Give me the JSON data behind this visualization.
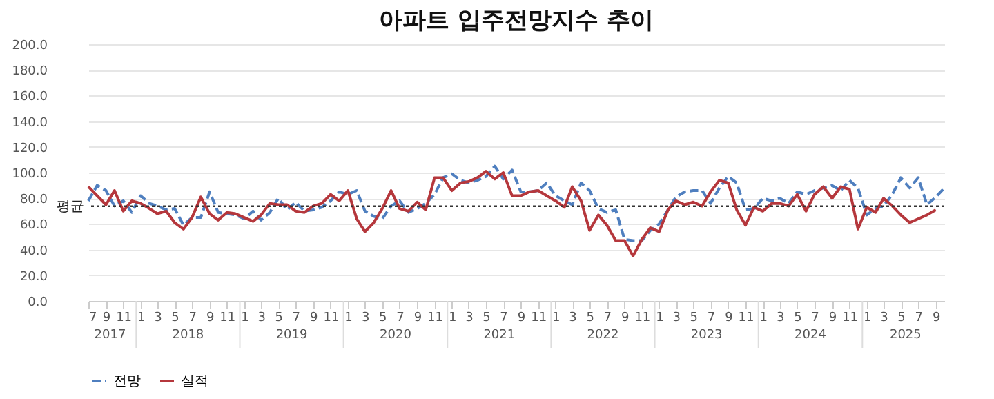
{
  "chart_data": {
    "type": "line",
    "title": "아파트 입주전망지수 추이",
    "x": [
      "2017-07",
      "2017-08",
      "2017-09",
      "2017-10",
      "2017-11",
      "2017-12",
      "2018-01",
      "2018-02",
      "2018-03",
      "2018-04",
      "2018-05",
      "2018-06",
      "2018-07",
      "2018-08",
      "2018-09",
      "2018-10",
      "2018-11",
      "2018-12",
      "2019-01",
      "2019-02",
      "2019-03",
      "2019-04",
      "2019-05",
      "2019-06",
      "2019-07",
      "2019-08",
      "2019-09",
      "2019-10",
      "2019-11",
      "2019-12",
      "2020-01",
      "2020-02",
      "2020-03",
      "2020-04",
      "2020-05",
      "2020-06",
      "2020-07",
      "2020-08",
      "2020-09",
      "2020-10",
      "2020-11",
      "2020-12",
      "2021-01",
      "2021-02",
      "2021-03",
      "2021-04",
      "2021-05",
      "2021-06",
      "2021-07",
      "2021-08",
      "2021-09",
      "2021-10",
      "2021-11",
      "2021-12",
      "2022-01",
      "2022-02",
      "2022-03",
      "2022-04",
      "2022-05",
      "2022-06",
      "2022-07",
      "2022-08",
      "2022-09",
      "2022-10",
      "2022-11",
      "2022-12",
      "2023-01",
      "2023-02",
      "2023-03",
      "2023-04",
      "2023-05",
      "2023-06",
      "2023-07",
      "2023-08",
      "2023-09",
      "2023-10",
      "2023-11",
      "2023-12",
      "2024-01",
      "2024-02",
      "2024-03",
      "2024-04",
      "2024-05",
      "2024-06",
      "2024-07",
      "2024-08",
      "2024-09",
      "2024-10",
      "2024-11",
      "2024-12",
      "2025-01",
      "2025-02",
      "2025-03",
      "2025-04",
      "2025-05",
      "2025-06",
      "2025-07",
      "2025-08",
      "2025-09",
      "2025-10"
    ],
    "xlim": [
      "2017-07",
      "2025-10"
    ],
    "xticks": [
      {
        "value": "2017-07",
        "label": "7"
      },
      {
        "value": "2017-09",
        "label": "9"
      },
      {
        "value": "2017-11",
        "label": "11"
      },
      {
        "value": "2018-01",
        "label": "1"
      },
      {
        "value": "2018-03",
        "label": "3"
      },
      {
        "value": "2018-05",
        "label": "5"
      },
      {
        "value": "2018-07",
        "label": "7"
      },
      {
        "value": "2018-09",
        "label": "9"
      },
      {
        "value": "2018-11",
        "label": "11"
      },
      {
        "value": "2019-01",
        "label": "1"
      },
      {
        "value": "2019-03",
        "label": "3"
      },
      {
        "value": "2019-05",
        "label": "5"
      },
      {
        "value": "2019-07",
        "label": "7"
      },
      {
        "value": "2019-09",
        "label": "9"
      },
      {
        "value": "2019-11",
        "label": "11"
      },
      {
        "value": "2020-01",
        "label": "1"
      },
      {
        "value": "2020-03",
        "label": "3"
      },
      {
        "value": "2020-05",
        "label": "5"
      },
      {
        "value": "2020-07",
        "label": "7"
      },
      {
        "value": "2020-09",
        "label": "9"
      },
      {
        "value": "2020-11",
        "label": "11"
      },
      {
        "value": "2021-01",
        "label": "1"
      },
      {
        "value": "2021-03",
        "label": "3"
      },
      {
        "value": "2021-05",
        "label": "5"
      },
      {
        "value": "2021-07",
        "label": "7"
      },
      {
        "value": "2021-09",
        "label": "9"
      },
      {
        "value": "2021-11",
        "label": "11"
      },
      {
        "value": "2022-01",
        "label": "1"
      },
      {
        "value": "2022-03",
        "label": "3"
      },
      {
        "value": "2022-05",
        "label": "5"
      },
      {
        "value": "2022-07",
        "label": "7"
      },
      {
        "value": "2022-09",
        "label": "9"
      },
      {
        "value": "2022-11",
        "label": "11"
      },
      {
        "value": "2023-01",
        "label": "1"
      },
      {
        "value": "2023-03",
        "label": "3"
      },
      {
        "value": "2023-05",
        "label": "5"
      },
      {
        "value": "2023-07",
        "label": "7"
      },
      {
        "value": "2023-09",
        "label": "9"
      },
      {
        "value": "2023-11",
        "label": "11"
      },
      {
        "value": "2024-01",
        "label": "1"
      },
      {
        "value": "2024-03",
        "label": "3"
      },
      {
        "value": "2024-05",
        "label": "5"
      },
      {
        "value": "2024-07",
        "label": "7"
      },
      {
        "value": "2024-09",
        "label": "9"
      },
      {
        "value": "2024-11",
        "label": "11"
      },
      {
        "value": "2025-01",
        "label": "1"
      },
      {
        "value": "2025-03",
        "label": "3"
      },
      {
        "value": "2025-05",
        "label": "5"
      },
      {
        "value": "2025-07",
        "label": "7"
      },
      {
        "value": "2025-09",
        "label": "9"
      }
    ],
    "ylim": [
      0,
      200
    ],
    "yticks": [
      {
        "value": 0,
        "label": "0.0"
      },
      {
        "value": 20,
        "label": "20.0"
      },
      {
        "value": 40,
        "label": "40.0"
      },
      {
        "value": 60,
        "label": "60.0"
      },
      {
        "value": 80,
        "label": "80.0"
      },
      {
        "value": 100,
        "label": "100.0"
      },
      {
        "value": 120,
        "label": "120.0"
      },
      {
        "value": 140,
        "label": "140.0"
      },
      {
        "value": 160,
        "label": "160.0"
      },
      {
        "value": 180,
        "label": "180.0"
      },
      {
        "value": 200,
        "label": "200.0"
      }
    ],
    "grid": "y",
    "legend": "bottom",
    "series": [
      {
        "name": "전망",
        "color": "#4f7fbf",
        "line_style": "dashed",
        "values": [
          78,
          90,
          86,
          74,
          78,
          69,
          82,
          76,
          74,
          71,
          72,
          59,
          65,
          65,
          85,
          69,
          68,
          67,
          64,
          70,
          63,
          69,
          80,
          71,
          77,
          70,
          71,
          73,
          78,
          85,
          83,
          86,
          70,
          66,
          64,
          74,
          78,
          69,
          72,
          76,
          83,
          96,
          99,
          94,
          92,
          94,
          97,
          105,
          95,
          102,
          85,
          85,
          86,
          92,
          82,
          78,
          75,
          92,
          86,
          72,
          69,
          71,
          48,
          47,
          47,
          55,
          60,
          71,
          81,
          85,
          86,
          86,
          76,
          88,
          97,
          92,
          71,
          72,
          80,
          78,
          80,
          76,
          85,
          83,
          86,
          88,
          90,
          86,
          94,
          88,
          67,
          72,
          74,
          83,
          96,
          88,
          96,
          75,
          81,
          88
        ]
      },
      {
        "name": "실적",
        "color": "#b5373c",
        "line_style": "solid",
        "values": [
          89,
          82,
          75,
          86,
          70,
          78,
          76,
          72,
          68,
          70,
          61,
          56,
          65,
          81,
          68,
          63,
          69,
          68,
          65,
          62,
          67,
          76,
          75,
          75,
          70,
          69,
          74,
          76,
          83,
          78,
          86,
          64,
          54,
          61,
          72,
          86,
          72,
          70,
          77,
          71,
          96,
          96,
          86,
          92,
          93,
          96,
          101,
          95,
          100,
          82,
          82,
          85,
          86,
          82,
          78,
          73,
          89,
          78,
          55,
          67,
          59,
          47,
          47,
          35,
          48,
          57,
          54,
          71,
          78,
          75,
          77,
          74,
          85,
          94,
          92,
          71,
          59,
          73,
          70,
          76,
          76,
          74,
          83,
          70,
          83,
          89,
          80,
          89,
          87,
          56,
          73,
          69,
          80,
          74,
          67,
          61,
          64,
          67,
          71,
          null
        ]
      }
    ],
    "ref_lines": [
      {
        "axis": "y",
        "value": 73.8,
        "label": "평균",
        "color": "#333333",
        "line_style": "dotted"
      }
    ],
    "annotations": [
      "2017",
      "2018",
      "2019",
      "2020",
      "2021",
      "2022",
      "2023",
      "2024",
      "2025"
    ]
  }
}
